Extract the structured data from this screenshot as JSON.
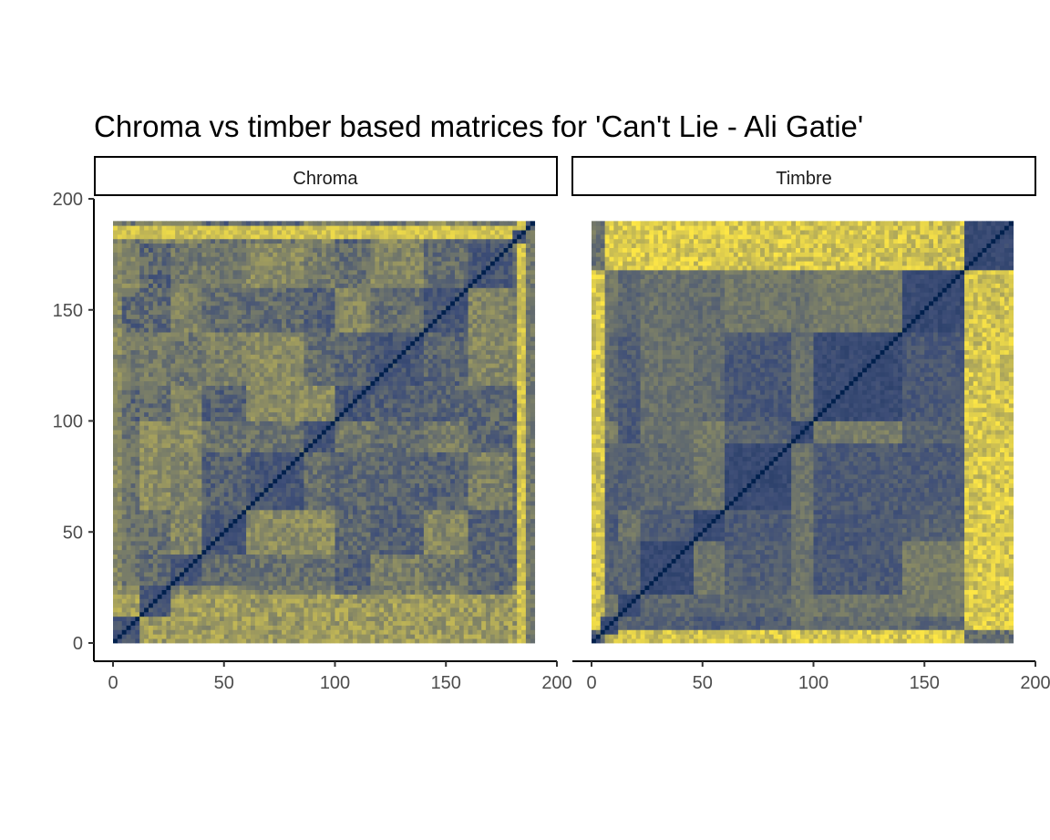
{
  "chart_data": {
    "type": "heatmap",
    "title": "Chroma vs timber based matrices for 'Can't Lie - Ali Gatie'",
    "xlabel": "",
    "ylabel": "",
    "xlim": [
      0,
      200
    ],
    "ylim": [
      0,
      200
    ],
    "x_ticks": [
      "0",
      "50",
      "100",
      "150",
      "200"
    ],
    "y_ticks": [
      "0",
      "50",
      "100",
      "150",
      "200"
    ],
    "grid": false,
    "facets": [
      "Chroma",
      "Timbre"
    ],
    "cell_extent": [
      0,
      190
    ],
    "segments": 95,
    "colors": {
      "low": "#00204d",
      "mid": "#3f4f78",
      "high": "#fde645"
    },
    "panels": [
      {
        "name": "Chroma",
        "note_high_bands": [
          183,
          186,
          1
        ],
        "section_edges": [
          0,
          12,
          25,
          40,
          60,
          85,
          100,
          115,
          140,
          160,
          180,
          186,
          190
        ]
      },
      {
        "name": "Timbre",
        "section_edges": [
          0,
          4,
          12,
          22,
          45,
          60,
          90,
          100,
          140,
          168,
          190
        ]
      }
    ]
  }
}
